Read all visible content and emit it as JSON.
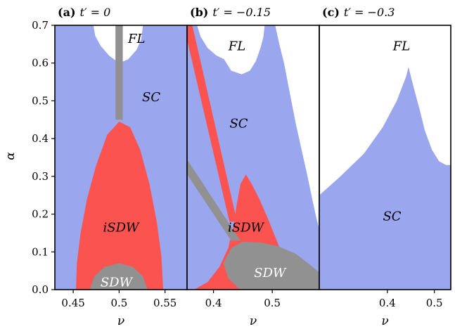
{
  "figure": {
    "ylabel": "α",
    "ylim": [
      0,
      0.7
    ],
    "yticks": [
      "0.0",
      "0.1",
      "0.2",
      "0.3",
      "0.4",
      "0.5",
      "0.6",
      "0.7"
    ]
  },
  "colors": {
    "sc": "#9aa7ee",
    "isdw": "#fb5450",
    "sdw": "#919191",
    "fl": "#ffffff",
    "axis": "#000000"
  },
  "chart_data": [
    {
      "type": "area",
      "panel": "a",
      "title_bold": "(a)",
      "title_math": "t′ = 0",
      "xlabel": "ν",
      "xlim": [
        0.43,
        0.574
      ],
      "xticks": [
        {
          "v": 0.45,
          "label": "0.45"
        },
        {
          "v": 0.5,
          "label": "0.5"
        },
        {
          "v": 0.55,
          "label": "0.55"
        }
      ],
      "regions": [
        {
          "label": "SC",
          "color": "sc",
          "label_at": [
            0.535,
            0.51
          ],
          "label_color": "#000000",
          "polygon": [
            [
              0.43,
              0
            ],
            [
              0.574,
              0
            ],
            [
              0.574,
              0.7
            ],
            [
              0.43,
              0.7
            ]
          ]
        },
        {
          "label": "FL",
          "color": "fl",
          "label_at": [
            0.519,
            0.665
          ],
          "label_color": "#000000",
          "polygon": [
            [
              0.472,
              0.7
            ],
            [
              0.474,
              0.672
            ],
            [
              0.48,
              0.645
            ],
            [
              0.489,
              0.62
            ],
            [
              0.5,
              0.6
            ],
            [
              0.51,
              0.61
            ],
            [
              0.519,
              0.635
            ],
            [
              0.524,
              0.662
            ],
            [
              0.526,
              0.7
            ]
          ]
        },
        {
          "label": "iSDW",
          "color": "isdw",
          "label_at": [
            0.502,
            0.165
          ],
          "label_color": "#000000",
          "polygon": [
            [
              0.453,
              0
            ],
            [
              0.454,
              0.07
            ],
            [
              0.458,
              0.15
            ],
            [
              0.465,
              0.24
            ],
            [
              0.475,
              0.33
            ],
            [
              0.487,
              0.41
            ],
            [
              0.5,
              0.445
            ],
            [
              0.512,
              0.43
            ],
            [
              0.523,
              0.37
            ],
            [
              0.533,
              0.28
            ],
            [
              0.541,
              0.18
            ],
            [
              0.546,
              0.09
            ],
            [
              0.548,
              0
            ]
          ]
        },
        {
          "label": "SDW",
          "color": "sdw",
          "label_at": [
            0.497,
            0.02
          ],
          "label_color": "#ffffff",
          "polygon": [
            [
              0.468,
              0
            ],
            [
              0.473,
              0.035
            ],
            [
              0.484,
              0.06
            ],
            [
              0.5,
              0.07
            ],
            [
              0.515,
              0.06
            ],
            [
              0.526,
              0.035
            ],
            [
              0.531,
              0
            ]
          ]
        },
        {
          "label": "",
          "color": "sdw",
          "polygon": [
            [
              0.496,
              0.45
            ],
            [
              0.504,
              0.45
            ],
            [
              0.504,
              0.7
            ],
            [
              0.496,
              0.7
            ]
          ]
        }
      ]
    },
    {
      "type": "area",
      "panel": "b",
      "title_bold": "(b)",
      "title_math": "t′ = −0.15",
      "xlabel": "ν",
      "xlim": [
        0.355,
        0.58
      ],
      "xticks": [
        {
          "v": 0.4,
          "label": "0.4"
        },
        {
          "v": 0.5,
          "label": "0.5"
        }
      ],
      "regions": [
        {
          "label": "",
          "color": "sc",
          "polygon": [
            [
              0.355,
              0
            ],
            [
              0.58,
              0
            ],
            [
              0.58,
              0.16
            ],
            [
              0.575,
              0.19
            ],
            [
              0.568,
              0.24
            ],
            [
              0.56,
              0.3
            ],
            [
              0.55,
              0.37
            ],
            [
              0.54,
              0.44
            ],
            [
              0.53,
              0.52
            ],
            [
              0.52,
              0.6
            ],
            [
              0.512,
              0.65
            ],
            [
              0.505,
              0.7
            ],
            [
              0.355,
              0.7
            ]
          ]
        },
        {
          "label": "SC",
          "color": "sc",
          "label_at": [
            0.443,
            0.44
          ],
          "label_color": "#000000",
          "polygon": []
        },
        {
          "label": "FL",
          "color": "fl",
          "label_at": [
            0.44,
            0.645
          ],
          "label_color": "#000000",
          "polygon": [
            [
              0.372,
              0.7
            ],
            [
              0.378,
              0.67
            ],
            [
              0.39,
              0.64
            ],
            [
              0.405,
              0.62
            ],
            [
              0.418,
              0.61
            ],
            [
              0.43,
              0.58
            ],
            [
              0.448,
              0.57
            ],
            [
              0.462,
              0.58
            ],
            [
              0.472,
              0.605
            ],
            [
              0.48,
              0.64
            ],
            [
              0.485,
              0.67
            ],
            [
              0.487,
              0.7
            ]
          ]
        },
        {
          "label": "",
          "color": "isdw",
          "polygon": [
            [
              0.367,
              0
            ],
            [
              0.39,
              0.02
            ],
            [
              0.41,
              0.06
            ],
            [
              0.425,
              0.11
            ],
            [
              0.434,
              0.17
            ],
            [
              0.44,
              0.23
            ],
            [
              0.446,
              0.28
            ],
            [
              0.455,
              0.305
            ],
            [
              0.465,
              0.28
            ],
            [
              0.478,
              0.24
            ],
            [
              0.492,
              0.19
            ],
            [
              0.505,
              0.14
            ],
            [
              0.518,
              0.09
            ],
            [
              0.53,
              0.045
            ],
            [
              0.54,
              0
            ]
          ]
        },
        {
          "label": "",
          "color": "isdw",
          "polygon": [
            [
              0.355,
              0.7
            ],
            [
              0.364,
              0.7
            ],
            [
              0.44,
              0.18
            ],
            [
              0.427,
              0.18
            ],
            [
              0.355,
              0.662
            ]
          ]
        },
        {
          "label": "iSDW",
          "color": "isdw",
          "label_at": [
            0.455,
            0.165
          ],
          "label_color": "#000000",
          "polygon": []
        },
        {
          "label": "",
          "color": "sdw",
          "polygon": [
            [
              0.355,
              0.345
            ],
            [
              0.355,
              0.305
            ],
            [
              0.43,
              0.13
            ],
            [
              0.446,
              0.13
            ],
            [
              0.437,
              0.15
            ]
          ]
        },
        {
          "label": "SDW",
          "color": "sdw",
          "label_at": [
            0.496,
            0.045
          ],
          "label_color": "#ffffff",
          "polygon": [
            [
              0.417,
              0.07
            ],
            [
              0.43,
              0.11
            ],
            [
              0.45,
              0.127
            ],
            [
              0.48,
              0.125
            ],
            [
              0.51,
              0.115
            ],
            [
              0.54,
              0.095
            ],
            [
              0.565,
              0.065
            ],
            [
              0.58,
              0.045
            ],
            [
              0.58,
              0
            ],
            [
              0.445,
              0
            ],
            [
              0.425,
              0.03
            ]
          ]
        }
      ]
    },
    {
      "type": "area",
      "panel": "c",
      "title_bold": "(c)",
      "title_math": "t′ = −0.3",
      "xlabel": "ν",
      "xlim": [
        0.255,
        0.535
      ],
      "xticks": [
        {
          "v": 0.4,
          "label": "0.4"
        },
        {
          "v": 0.5,
          "label": "0.5"
        }
      ],
      "regions": [
        {
          "label": "SC",
          "color": "sc",
          "label_at": [
            0.41,
            0.195
          ],
          "label_color": "#000000",
          "polygon": [
            [
              0.255,
              0
            ],
            [
              0.535,
              0
            ],
            [
              0.535,
              0.33
            ],
            [
              0.525,
              0.33
            ],
            [
              0.51,
              0.34
            ],
            [
              0.495,
              0.37
            ],
            [
              0.48,
              0.42
            ],
            [
              0.468,
              0.48
            ],
            [
              0.455,
              0.54
            ],
            [
              0.445,
              0.59
            ],
            [
              0.44,
              0.565
            ],
            [
              0.42,
              0.5
            ],
            [
              0.39,
              0.43
            ],
            [
              0.35,
              0.36
            ],
            [
              0.3,
              0.3
            ],
            [
              0.255,
              0.25
            ]
          ]
        },
        {
          "label": "FL",
          "color": "fl",
          "label_at": [
            0.43,
            0.645
          ],
          "label_color": "#000000",
          "polygon": []
        }
      ]
    }
  ]
}
